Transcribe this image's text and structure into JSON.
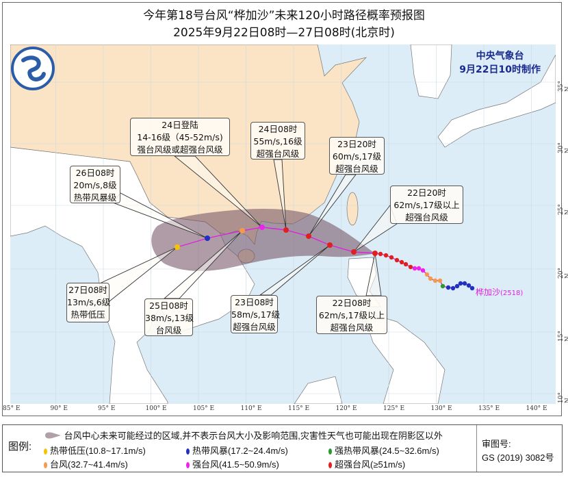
{
  "title": "今年第18号台风“桦加沙”未来120小时路径概率预报图",
  "subtitle": "2025年9月22日08时—27日08时(北京时)",
  "agency": {
    "name": "中央气象台",
    "issued": "9月22日10时制作"
  },
  "typhoon": {
    "name": "桦加沙",
    "number": "(2518)"
  },
  "lon_labels": [
    "85° E",
    "90° E",
    "95° E",
    "100° E",
    "105° E",
    "110° E",
    "115° E",
    "120° E",
    "125° E",
    "130° E",
    "135° E",
    "140° E"
  ],
  "lat_labels": [
    "35° N",
    "30° N",
    "25° N",
    "20° N",
    "15° N",
    "10° N"
  ],
  "callouts": [
    {
      "lines": [
        "24日登陆",
        "14-16级（45-52m/s)",
        "强台风级或超强台风级"
      ]
    },
    {
      "lines": [
        "24日08时",
        "55m/s,16级",
        "超强台风级"
      ]
    },
    {
      "lines": [
        "23日20时",
        "60m/s,17级",
        "超强台风级"
      ]
    },
    {
      "lines": [
        "26日08时",
        "20m/s,8级",
        "热带风暴级"
      ]
    },
    {
      "lines": [
        "22日20时",
        "62m/s,17级以上",
        "超强台风级"
      ]
    },
    {
      "lines": [
        "27日08时",
        "13m/s,6级",
        "热带低压"
      ]
    },
    {
      "lines": [
        "25日08时",
        "38m/s,13级",
        "台风级"
      ]
    },
    {
      "lines": [
        "23日08时",
        "58m/s,17级",
        "超强台风级"
      ]
    },
    {
      "lines": [
        "22日08时",
        "62m/s,17级以上",
        "超强台风级"
      ]
    }
  ],
  "legend": {
    "title": "图例:",
    "cone": "台风中心未来可能经过的区域,并不表示台风大小及影响范围,灾害性天气也可能出现在阴影区以外",
    "categories": [
      {
        "label": "热带低压(10.8~17.1m/s)",
        "color": "#f5c400"
      },
      {
        "label": "热带风暴(17.2~24.4m/s)",
        "color": "#2030c0"
      },
      {
        "label": "强热带风暴(24.5~32.6m/s)",
        "color": "#2a9a2a"
      },
      {
        "label": "台风(32.7~41.4m/s)",
        "color": "#f59a4a"
      },
      {
        "label": "强台风(41.5~50.9m/s)",
        "color": "#ee22ee"
      },
      {
        "label": "超强台风(≥51m/s)",
        "color": "#e02020"
      }
    ],
    "review_label": "审图号:",
    "review_number": "GS (2019) 3082号"
  },
  "colors": {
    "land_china": "#fbe4c6",
    "land_other": "#ffffff",
    "sea": "#dcedf8",
    "cone": "#8a6a78",
    "track": "#e020e0",
    "agency": "#1a2a8c"
  }
}
